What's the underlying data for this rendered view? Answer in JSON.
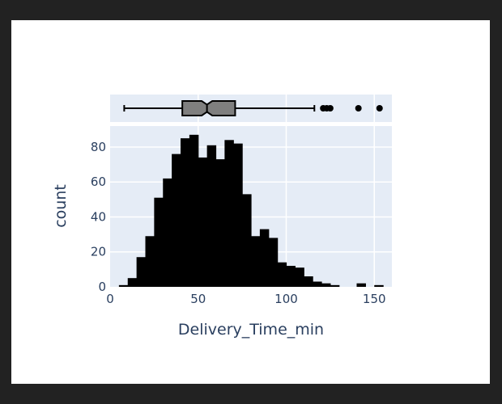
{
  "chart_data": [
    {
      "type": "boxplot",
      "orientation": "horizontal",
      "variable": "Delivery_Time_min",
      "notched": true,
      "min_whisker": 8,
      "q1": 41,
      "median": 55,
      "notch_low": 52,
      "notch_high": 58,
      "q3": 71,
      "max_whisker": 116,
      "outliers": [
        121,
        123,
        125,
        141,
        153
      ],
      "colors": {
        "box_fill": "#7f7f7f",
        "outline": "#000000",
        "background": "#e5ecf6",
        "grid": "#ffffff"
      }
    },
    {
      "type": "bar",
      "subtype": "histogram",
      "xlabel": "Delivery_Time_min",
      "ylabel": "count",
      "xlim": [
        0,
        160
      ],
      "ylim": [
        0,
        92
      ],
      "bin_width": 5,
      "x_ticks": [
        "0",
        "50",
        "100",
        "150"
      ],
      "y_ticks": [
        "0",
        "20",
        "40",
        "60",
        "80"
      ],
      "bin_start": [
        5,
        10,
        15,
        20,
        25,
        30,
        35,
        40,
        45,
        50,
        55,
        60,
        65,
        70,
        75,
        80,
        85,
        90,
        95,
        100,
        105,
        110,
        115,
        120,
        125,
        130,
        135,
        140,
        145,
        150
      ],
      "values": [
        1,
        5,
        17,
        29,
        51,
        62,
        76,
        85,
        87,
        74,
        81,
        73,
        84,
        82,
        53,
        29,
        33,
        28,
        14,
        12,
        11,
        6,
        3,
        2,
        1,
        0,
        0,
        2,
        0,
        1
      ],
      "grid": true,
      "colors": {
        "bars": "#000000",
        "background": "#e5ecf6",
        "grid": "#ffffff"
      }
    }
  ]
}
